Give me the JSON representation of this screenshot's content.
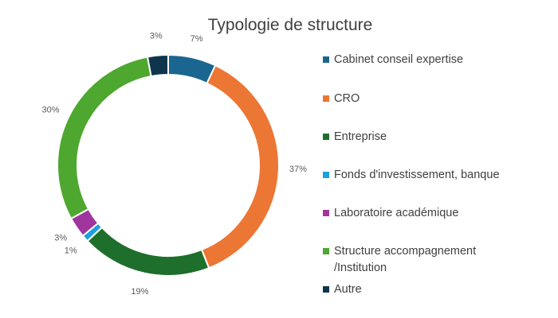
{
  "chart_data": {
    "type": "pie",
    "title": "Typologie de structure",
    "donut": true,
    "legend_position": "right",
    "categories": [
      "Cabinet conseil expertise",
      "CRO",
      "Entreprise",
      "Fonds d'investissement, banque",
      "Laboratoire académique",
      "Structure accompagnement /Institution",
      "Autre"
    ],
    "values": [
      7,
      37,
      19,
      1,
      3,
      30,
      3
    ],
    "labels": [
      "7%",
      "37%",
      "19%",
      "1%",
      "3%",
      "30%",
      "3%"
    ],
    "colors": [
      "#1b6690",
      "#ec7634",
      "#1e6f2b",
      "#1ba1dc",
      "#a0359e",
      "#4ea72e",
      "#0f354c"
    ]
  }
}
